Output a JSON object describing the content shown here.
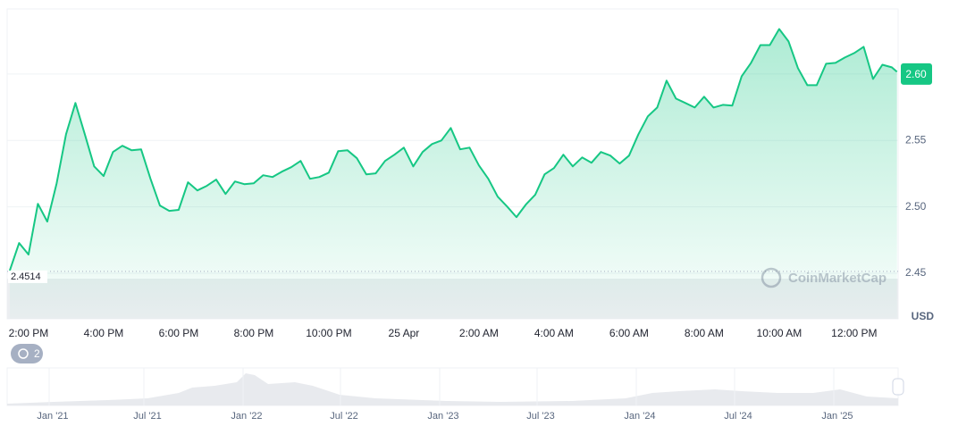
{
  "chart_data": {
    "type": "line",
    "x": [
      -0.5,
      -0.25,
      0,
      0.25,
      0.5,
      0.75,
      1,
      1.25,
      1.5,
      1.75,
      2,
      2.25,
      2.5,
      2.75,
      3,
      3.25,
      3.5,
      3.75,
      4,
      4.25,
      4.5,
      4.75,
      5,
      5.25,
      5.5,
      5.75,
      6,
      6.25,
      6.5,
      6.75,
      7,
      7.25,
      7.5,
      7.75,
      8,
      8.25,
      8.5,
      8.75,
      9,
      9.25,
      9.5,
      9.75,
      10,
      10.25,
      10.5,
      10.75,
      11,
      11.25,
      11.5,
      11.75,
      12,
      12.25,
      12.5,
      12.75,
      13,
      13.25,
      13.5,
      13.75,
      14,
      14.25,
      14.5,
      14.75,
      15,
      15.25,
      15.5,
      15.75,
      16,
      16.25,
      16.5,
      16.75,
      17,
      17.25,
      17.5,
      17.75,
      18,
      18.25,
      18.5,
      18.75,
      19,
      19.25,
      19.5,
      19.75,
      20,
      20.25,
      20.5,
      20.75,
      21,
      21.25,
      21.5,
      21.75,
      22,
      22.25,
      22.5,
      22.75,
      23,
      23.14
    ],
    "series": [
      {
        "color": "#16c784",
        "values": [
          2.452,
          2.4728,
          2.4641,
          2.5023,
          2.4889,
          2.5178,
          2.5547,
          2.5782,
          2.5547,
          2.5305,
          2.5232,
          2.5413,
          2.546,
          2.5426,
          2.5433,
          2.5211,
          2.501,
          2.497,
          2.4977,
          2.5185,
          2.5124,
          2.5158,
          2.5205,
          2.5097,
          2.5191,
          2.5171,
          2.5178,
          2.5238,
          2.5225,
          2.5265,
          2.5299,
          2.5346,
          2.5211,
          2.5225,
          2.5258,
          2.5419,
          2.5426,
          2.5366,
          2.5245,
          2.5252,
          2.5346,
          2.5393,
          2.5446,
          2.5305,
          2.5413,
          2.5473,
          2.55,
          2.5594,
          2.5433,
          2.5446,
          2.5312,
          2.5211,
          2.5077,
          2.5003,
          2.4923,
          2.5017,
          2.5091,
          2.5245,
          2.5292,
          2.5393,
          2.5305,
          2.5372,
          2.5332,
          2.5413,
          2.5386,
          2.5326,
          2.5386,
          2.5547,
          2.5681,
          2.5748,
          2.595,
          2.5815,
          2.5782,
          2.5748,
          2.5829,
          2.5748,
          2.5768,
          2.5762,
          2.5983,
          2.6084,
          2.6218,
          2.6218,
          2.6339,
          2.6245,
          2.6044,
          2.5916,
          2.5916,
          2.6077,
          2.6084,
          2.6124,
          2.6158,
          2.6205,
          2.5963,
          2.607,
          2.605,
          2.6017
        ]
      }
    ],
    "xlim": [
      -0.57,
      23.17
    ],
    "xticks": [
      {
        "value": 0,
        "label": "2:00 PM"
      },
      {
        "value": 2,
        "label": "4:00 PM"
      },
      {
        "value": 4,
        "label": "6:00 PM"
      },
      {
        "value": 6,
        "label": "8:00 PM"
      },
      {
        "value": 8,
        "label": "10:00 PM"
      },
      {
        "value": 10,
        "label": "25 Apr"
      },
      {
        "value": 12,
        "label": "2:00 AM"
      },
      {
        "value": 14,
        "label": "4:00 AM"
      },
      {
        "value": 16,
        "label": "6:00 AM"
      },
      {
        "value": 18,
        "label": "8:00 AM"
      },
      {
        "value": 20,
        "label": "10:00 AM"
      },
      {
        "value": 22,
        "label": "12:00 PM"
      }
    ],
    "ylim": [
      2.45,
      2.649
    ],
    "yticks": [
      2.45,
      {
        "value": 2.5,
        "label": "2.50"
      },
      2.55,
      {
        "value": 2.6,
        "label": "2.60"
      }
    ],
    "grid": true,
    "reference_line": {
      "value": 2.4514,
      "label": "2.4514"
    },
    "last_price": {
      "value": 2.6,
      "label": "2.60"
    },
    "currency": "USD",
    "watermark": "CoinMarketCap",
    "badge": "2",
    "navigator_labels": [
      "Jan '21",
      "Jul '21",
      "Jan '22",
      "Jul '22",
      "Jan '23",
      "Jul '23",
      "Jan '24",
      "Jul '24",
      "Jan '25"
    ]
  }
}
